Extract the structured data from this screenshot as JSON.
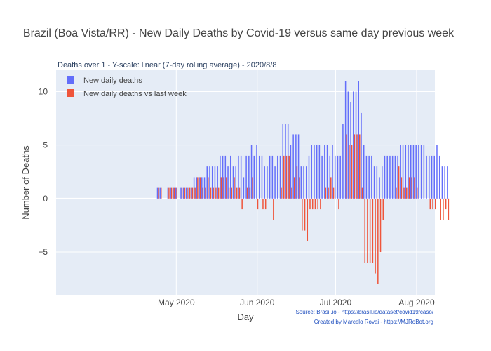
{
  "chart_data": {
    "type": "bar",
    "title": "Brazil (Boa Vista/RR) - New Daily Deaths by Covid-19 versus same day previous week",
    "subtitle": "Deaths over 1 - Y-scale: linear (7-day rolling average) - 2020/8/8",
    "xlabel": "Day",
    "ylabel": "Number of Deaths",
    "ylim": [
      -9,
      12
    ],
    "yticks": [
      -5,
      0,
      5,
      10
    ],
    "ytick_labels": [
      "−5",
      "0",
      "5",
      "10"
    ],
    "xlim": [
      "2020-03-16",
      "2020-08-08"
    ],
    "xticks": [
      "2020-05-01",
      "2020-06-01",
      "2020-07-01",
      "2020-08-01"
    ],
    "xtick_labels": [
      "May 2020",
      "Jun 2020",
      "Jul 2020",
      "Aug 2020"
    ],
    "grid": true,
    "legend_position": "top-left",
    "start_date": "2020-04-24",
    "series": [
      {
        "name": "New daily deaths",
        "color": "#636efa",
        "values": [
          1,
          1,
          0,
          0,
          1,
          1,
          1,
          1,
          0,
          1,
          1,
          1,
          1,
          1,
          2,
          2,
          2,
          2,
          2,
          3,
          3,
          3,
          3,
          3,
          4,
          4,
          4,
          3,
          4,
          3,
          3,
          4,
          4,
          2,
          4,
          4,
          5,
          4,
          5,
          4,
          4,
          3,
          3,
          4,
          4,
          3,
          4,
          4,
          7,
          7,
          7,
          5,
          6,
          6,
          6,
          3,
          3,
          3,
          4,
          5,
          5,
          5,
          5,
          4,
          5,
          5,
          4,
          5,
          4,
          4,
          4,
          7,
          11,
          10,
          9,
          10,
          10,
          11,
          8,
          5,
          4,
          4,
          4,
          3,
          3,
          2,
          3,
          4,
          4,
          4,
          4,
          4,
          4,
          5,
          5,
          5,
          5,
          5,
          5,
          5,
          5,
          5,
          5,
          4,
          4,
          4,
          4,
          5,
          4,
          3,
          3,
          3
        ]
      },
      {
        "name": "New daily deaths vs last week",
        "color": "#ef553b",
        "values": [
          1,
          1,
          0,
          0,
          1,
          1,
          1,
          1,
          0,
          1,
          1,
          1,
          1,
          1,
          1,
          2,
          2,
          1,
          1,
          2,
          1,
          1,
          1,
          1,
          2,
          2,
          2,
          1,
          1,
          2,
          1,
          1,
          -1,
          0,
          1,
          1,
          2,
          0,
          -1,
          0,
          -1,
          -1,
          0,
          0,
          -2,
          0,
          0,
          1,
          4,
          4,
          4,
          1,
          2,
          3,
          2,
          -3,
          -3,
          -4,
          -1,
          -1,
          -1,
          -1,
          -1,
          0,
          1,
          1,
          2,
          1,
          0,
          -1,
          0,
          0,
          6,
          5,
          5,
          6,
          6,
          6,
          1,
          -6,
          -6,
          -6,
          -6,
          -7,
          -8,
          -5,
          -2,
          0,
          0,
          0,
          0,
          1,
          3,
          2,
          1,
          1,
          2,
          2,
          2,
          1,
          0,
          0,
          0,
          0,
          -1,
          -1,
          -1,
          0,
          -2,
          -2,
          -1,
          -2
        ]
      }
    ]
  },
  "annotations": {
    "source": "Source: Brasil.io - https://brasil.io/dataset/covid19/caso/",
    "credit": "Created by Marcelo Rovai - https://MJRoBot.org"
  }
}
